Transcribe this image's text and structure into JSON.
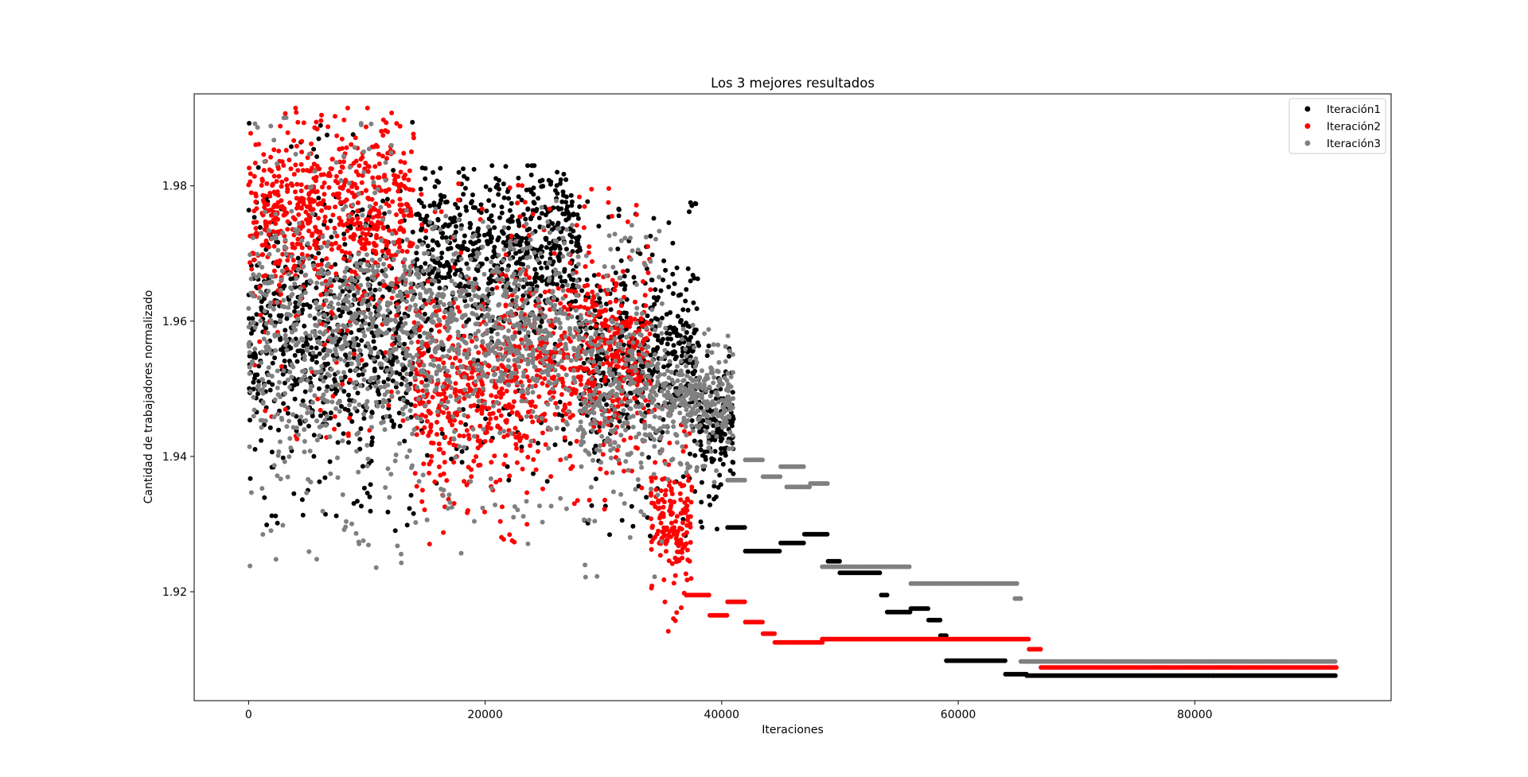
{
  "chart_data": {
    "type": "scatter",
    "title": "Los 3 mejores resultados",
    "xlabel": "Iteraciones",
    "ylabel": "Cantidad de trabajadores normalizado",
    "xlim": [
      -4600,
      96600
    ],
    "ylim": [
      1.9039,
      1.9936
    ],
    "x_ticks": [
      0,
      20000,
      40000,
      60000,
      80000
    ],
    "y_ticks": [
      1.92,
      1.94,
      1.96,
      1.98
    ],
    "x_tick_labels": [
      "0",
      "20000",
      "40000",
      "60000",
      "80000"
    ],
    "y_tick_labels": [
      "1.92",
      "1.94",
      "1.96",
      "1.98"
    ],
    "grid": false,
    "legend_position": "top-right",
    "series": [
      {
        "name": "Iteración1",
        "color": "#000000",
        "noisy_segments": [
          {
            "x0": 0,
            "x1": 14000,
            "y_low": 1.9285,
            "y_high": 1.9895,
            "y_center": 1.958
          },
          {
            "x0": 14000,
            "x1": 28000,
            "y_low": 1.936,
            "y_high": 1.983,
            "y_center": 1.97
          },
          {
            "x0": 28000,
            "x1": 38000,
            "y_low": 1.928,
            "y_high": 1.978,
            "y_center": 1.955
          },
          {
            "x0": 38000,
            "x1": 41000,
            "y_low": 1.929,
            "y_high": 1.957,
            "y_center": 1.945
          }
        ],
        "steps": [
          {
            "x0": 40500,
            "x1": 42000,
            "y": 1.9295
          },
          {
            "x0": 42000,
            "x1": 45000,
            "y": 1.926
          },
          {
            "x0": 45000,
            "x1": 47000,
            "y": 1.9272
          },
          {
            "x0": 47000,
            "x1": 49000,
            "y": 1.9285
          },
          {
            "x0": 49000,
            "x1": 50000,
            "y": 1.9245
          },
          {
            "x0": 50000,
            "x1": 53500,
            "y": 1.9228
          },
          {
            "x0": 53500,
            "x1": 54000,
            "y": 1.9195
          },
          {
            "x0": 54000,
            "x1": 56000,
            "y": 1.917
          },
          {
            "x0": 56000,
            "x1": 57500,
            "y": 1.9175
          },
          {
            "x0": 57500,
            "x1": 58500,
            "y": 1.9158
          },
          {
            "x0": 58500,
            "x1": 59000,
            "y": 1.9135
          },
          {
            "x0": 59000,
            "x1": 64000,
            "y": 1.9098
          },
          {
            "x0": 64000,
            "x1": 65800,
            "y": 1.9078
          },
          {
            "x0": 65800,
            "x1": 92000,
            "y": 1.9076
          }
        ]
      },
      {
        "name": "Iteración2",
        "color": "#ff0000",
        "noisy_segments": [
          {
            "x0": 0,
            "x1": 14000,
            "y_low": 1.9425,
            "y_high": 1.9915,
            "y_center": 1.976
          },
          {
            "x0": 14000,
            "x1": 24000,
            "y_low": 1.927,
            "y_high": 1.981,
            "y_center": 1.95
          },
          {
            "x0": 24000,
            "x1": 34000,
            "y_low": 1.932,
            "y_high": 1.981,
            "y_center": 1.955
          },
          {
            "x0": 34000,
            "x1": 37500,
            "y_low": 1.914,
            "y_high": 1.948,
            "y_center": 1.93
          }
        ],
        "steps": [
          {
            "x0": 37000,
            "x1": 39000,
            "y": 1.9195
          },
          {
            "x0": 39000,
            "x1": 40500,
            "y": 1.9165
          },
          {
            "x0": 40500,
            "x1": 42000,
            "y": 1.9185
          },
          {
            "x0": 42000,
            "x1": 43500,
            "y": 1.9155
          },
          {
            "x0": 43500,
            "x1": 44500,
            "y": 1.9138
          },
          {
            "x0": 44500,
            "x1": 48500,
            "y": 1.9125
          },
          {
            "x0": 48500,
            "x1": 66000,
            "y": 1.913
          },
          {
            "x0": 66000,
            "x1": 67000,
            "y": 1.9115
          },
          {
            "x0": 67000,
            "x1": 92000,
            "y": 1.9088
          }
        ]
      },
      {
        "name": "Iteración3",
        "color": "#808080",
        "noisy_segments": [
          {
            "x0": 0,
            "x1": 14000,
            "y_low": 1.9235,
            "y_high": 1.9905,
            "y_center": 1.958
          },
          {
            "x0": 14000,
            "x1": 28000,
            "y_low": 1.925,
            "y_high": 1.979,
            "y_center": 1.959
          },
          {
            "x0": 28000,
            "x1": 35000,
            "y_low": 1.922,
            "y_high": 1.975,
            "y_center": 1.95
          },
          {
            "x0": 35000,
            "x1": 41000,
            "y_low": 1.936,
            "y_high": 1.96,
            "y_center": 1.949
          }
        ],
        "steps": [
          {
            "x0": 40500,
            "x1": 42000,
            "y": 1.9365
          },
          {
            "x0": 42000,
            "x1": 43500,
            "y": 1.9395
          },
          {
            "x0": 43500,
            "x1": 45000,
            "y": 1.937
          },
          {
            "x0": 45000,
            "x1": 47000,
            "y": 1.9385
          },
          {
            "x0": 45500,
            "x1": 47500,
            "y": 1.9355
          },
          {
            "x0": 47500,
            "x1": 49000,
            "y": 1.936
          },
          {
            "x0": 48500,
            "x1": 56000,
            "y": 1.9237
          },
          {
            "x0": 56000,
            "x1": 65000,
            "y": 1.9212
          },
          {
            "x0": 64800,
            "x1": 65300,
            "y": 1.919
          },
          {
            "x0": 65300,
            "x1": 92000,
            "y": 1.9097
          }
        ]
      }
    ]
  }
}
